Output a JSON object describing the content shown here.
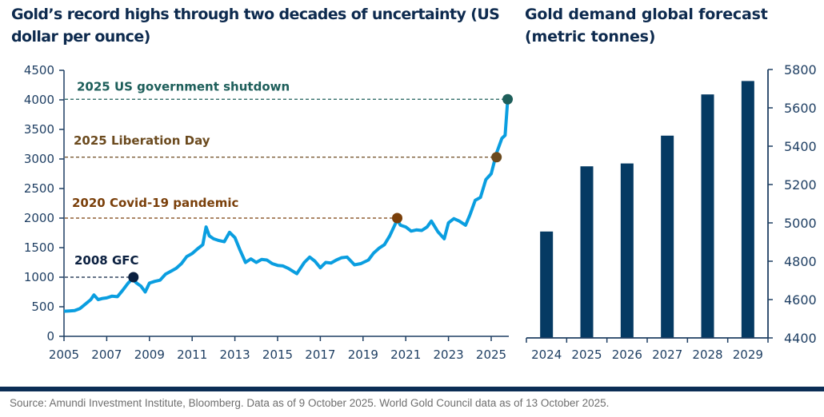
{
  "chart_data": [
    {
      "type": "line",
      "title": "Gold’s record highs through two decades of uncertainty (US dollar per ounce)",
      "xlabel": "",
      "ylabel": "",
      "xlim": [
        2005,
        2025.8
      ],
      "ylim": [
        0,
        4500
      ],
      "x_ticks": [
        "2005",
        "2007",
        "2009",
        "2011",
        "2013",
        "2015",
        "2017",
        "2019",
        "2021",
        "2023",
        "2025"
      ],
      "y_ticks": [
        "0",
        "500",
        "1000",
        "1500",
        "2000",
        "2500",
        "3000",
        "3500",
        "4000",
        "4500"
      ],
      "grid": false,
      "line_color": "#0a9ee0",
      "series": [
        {
          "name": "Gold price (USD/oz)",
          "x": [
            2005.0,
            2005.25,
            2005.5,
            2005.75,
            2006.0,
            2006.25,
            2006.4,
            2006.6,
            2006.8,
            2007.0,
            2007.25,
            2007.5,
            2007.75,
            2008.0,
            2008.2,
            2008.4,
            2008.6,
            2008.8,
            2009.0,
            2009.25,
            2009.5,
            2009.75,
            2010.0,
            2010.25,
            2010.5,
            2010.75,
            2011.0,
            2011.25,
            2011.5,
            2011.65,
            2011.8,
            2012.0,
            2012.25,
            2012.5,
            2012.75,
            2013.0,
            2013.25,
            2013.5,
            2013.75,
            2014.0,
            2014.25,
            2014.5,
            2014.75,
            2015.0,
            2015.25,
            2015.5,
            2015.9,
            2016.25,
            2016.5,
            2016.75,
            2017.0,
            2017.25,
            2017.5,
            2017.75,
            2018.0,
            2018.25,
            2018.6,
            2018.9,
            2019.25,
            2019.5,
            2019.75,
            2020.0,
            2020.25,
            2020.6,
            2020.75,
            2021.0,
            2021.25,
            2021.5,
            2021.75,
            2022.0,
            2022.2,
            2022.5,
            2022.8,
            2023.0,
            2023.25,
            2023.5,
            2023.8,
            2024.0,
            2024.25,
            2024.5,
            2024.75,
            2025.0,
            2025.25,
            2025.5,
            2025.65,
            2025.77
          ],
          "values": [
            425,
            430,
            435,
            470,
            545,
            620,
            700,
            620,
            640,
            650,
            680,
            670,
            780,
            900,
            970,
            900,
            850,
            750,
            900,
            930,
            950,
            1050,
            1100,
            1150,
            1230,
            1350,
            1400,
            1480,
            1550,
            1850,
            1700,
            1650,
            1620,
            1600,
            1760,
            1670,
            1450,
            1250,
            1310,
            1250,
            1300,
            1290,
            1230,
            1200,
            1190,
            1150,
            1060,
            1250,
            1340,
            1270,
            1160,
            1250,
            1240,
            1290,
            1330,
            1340,
            1210,
            1230,
            1290,
            1410,
            1490,
            1550,
            1700,
            1970,
            1880,
            1850,
            1780,
            1800,
            1790,
            1850,
            1950,
            1770,
            1650,
            1920,
            1990,
            1950,
            1880,
            2050,
            2300,
            2350,
            2650,
            2750,
            3100,
            3350,
            3400,
            4000
          ]
        }
      ],
      "annotations": [
        {
          "label": "2025 US government shutdown",
          "x": 2025.77,
          "y": 4010,
          "color": "#1d5e5a"
        },
        {
          "label": "2025 Liberation Day",
          "x": 2025.25,
          "y": 3030,
          "color": "#6b4a1e"
        },
        {
          "label": "2020 Covid-19 pandemic",
          "x": 2020.6,
          "y": 2000,
          "color": "#7a3f0a"
        },
        {
          "label": "2008 GFC",
          "x": 2008.25,
          "y": 1000,
          "color": "#0b2040"
        }
      ]
    },
    {
      "type": "bar",
      "title": "Gold demand global forecast (metric tonnes)",
      "xlabel": "",
      "ylabel": "",
      "categories": [
        "2024",
        "2025",
        "2026",
        "2027",
        "2028",
        "2029"
      ],
      "values": [
        4955,
        5295,
        5310,
        5455,
        5670,
        5740
      ],
      "ylim": [
        4400,
        5800
      ],
      "y_ticks": [
        "4400",
        "4600",
        "4800",
        "5000",
        "5200",
        "5400",
        "5600",
        "5800"
      ],
      "y_axis_side": "right",
      "grid": false,
      "bar_color": "#053a63"
    }
  ],
  "footer": {
    "source": "Source: Amundi Investment Institute, Bloomberg. Data as of 9 October 2025. World Gold Council data as of 13 October 2025."
  }
}
